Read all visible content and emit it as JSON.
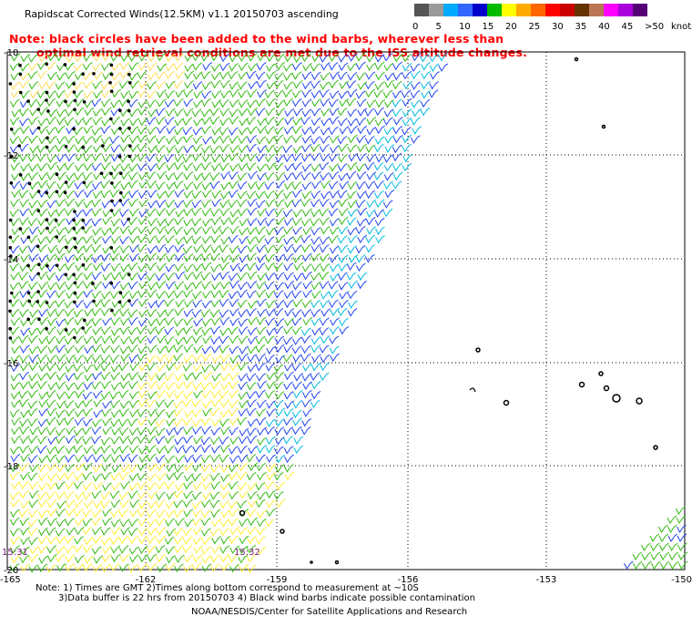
{
  "title": "Rapidscat Corrected Winds(12.5KM) v1.1 20150703 ascending",
  "note_line1": "Note: black circles have been added to the wind barbs, wherever less than",
  "note_line2": "optimal wind retrieval conditions are met due to the ISS altitude changes.",
  "colorbar": {
    "colors": [
      "#555555",
      "#999999",
      "#00aaff",
      "#3366ff",
      "#0000cc",
      "#00bb00",
      "#ffff00",
      "#ffaa00",
      "#ff6600",
      "#ff0000",
      "#cc0000",
      "#663300",
      "#bb7755",
      "#ff00ff",
      "#aa00dd",
      "#550077"
    ],
    "labels": [
      "0",
      "5",
      "10",
      "15",
      "20",
      "25",
      "30",
      "35",
      "40",
      "45",
      ">50"
    ],
    "unit": "knots"
  },
  "axes": {
    "y_labels": [
      "-10",
      "-12",
      "-14",
      "-16",
      "-18",
      "-20"
    ],
    "x_labels": [
      "-165",
      "-162",
      "-159",
      "-156",
      "-153",
      "-150"
    ]
  },
  "times": [
    "15:31",
    "15:32"
  ],
  "footer_line1": "Note: 1) Times are GMT 2)Times along bottom correspond to measurement at ~10S",
  "footer_line2": "3)Data buffer is 22 hrs from 20150703 4) Black wind barbs indicate possible contamination",
  "footer_line3": "NOAA/NESDIS/Center for Satellite Applications and Research"
}
